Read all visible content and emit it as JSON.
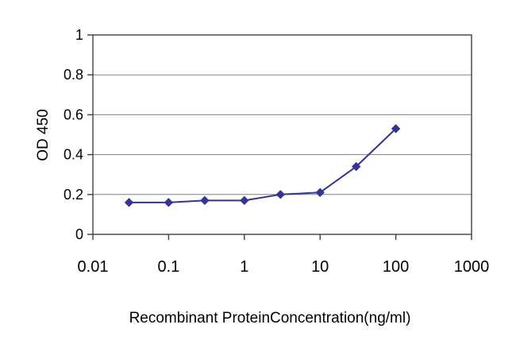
{
  "chart_data": {
    "type": "line",
    "title": "",
    "xlabel": "Recombinant ProteinConcentration(ng/ml)",
    "ylabel": "OD 450",
    "xscale": "log",
    "xlim": [
      0.01,
      1000
    ],
    "ylim": [
      0,
      1
    ],
    "xticks": {
      "values": [
        0.01,
        0.1,
        1,
        10,
        100,
        1000
      ],
      "labels": [
        "0.01",
        "0.1",
        "1",
        "10",
        "100",
        "1000"
      ]
    },
    "yticks": {
      "values": [
        0,
        0.2,
        0.4,
        0.6,
        0.8,
        1
      ],
      "labels": [
        "0",
        "0.2",
        "0.4",
        "0.6",
        "0.8",
        "1"
      ]
    },
    "series": [
      {
        "name": "OD 450",
        "x": [
          0.03,
          0.1,
          0.3,
          1,
          3,
          10,
          30,
          100
        ],
        "y": [
          0.16,
          0.16,
          0.17,
          0.17,
          0.2,
          0.21,
          0.34,
          0.53
        ],
        "color": "#333399",
        "marker": "diamond"
      }
    ],
    "grid": {
      "horizontal": true,
      "vertical": false,
      "color": "#808080"
    },
    "axis_color": "#404040",
    "background": "#ffffff",
    "legend": "none"
  }
}
